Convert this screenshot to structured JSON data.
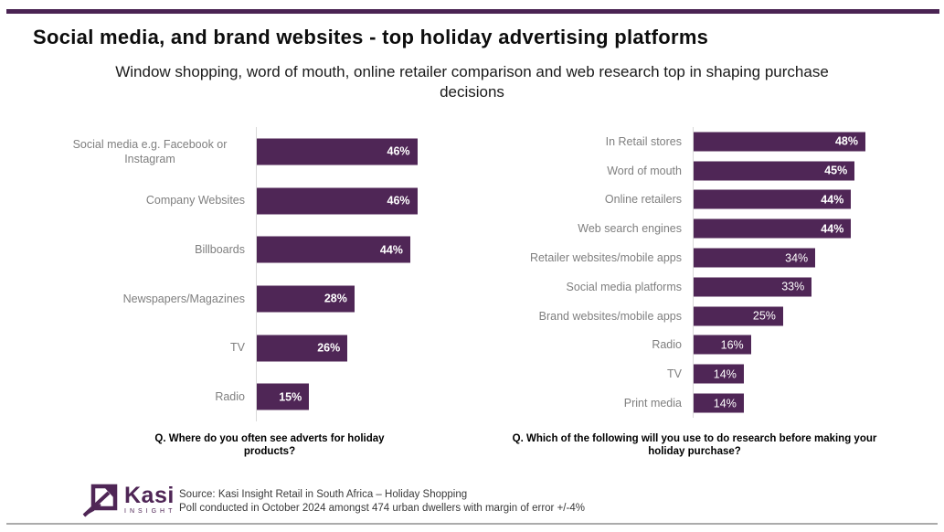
{
  "header": {
    "title": "Social media, and brand websites - top holiday advertising platforms",
    "subtitle": "Window shopping, word of mouth, online retailer comparison and web research top in shaping purchase decisions"
  },
  "chart_data": [
    {
      "type": "bar",
      "orientation": "horizontal",
      "question": "Q. Where do you often see adverts for holiday products?",
      "categories": [
        "Social media e.g. Facebook or Instagram",
        "Company Websites",
        "Billboards",
        "Newspapers/Magazines",
        "TV",
        "Radio"
      ],
      "values": [
        46,
        46,
        44,
        28,
        26,
        15
      ],
      "value_labels": [
        "46%",
        "46%",
        "44%",
        "28%",
        "26%",
        "15%"
      ],
      "bold_value_labels": [
        true,
        true,
        true,
        true,
        true,
        true
      ],
      "xlim": [
        0,
        60
      ],
      "unit": "%",
      "bar_color": "#4F2656",
      "grid": false,
      "legend": false
    },
    {
      "type": "bar",
      "orientation": "horizontal",
      "question": "Q. Which of the following will you use to do research before making your holiday purchase?",
      "categories": [
        "In Retail stores",
        "Word of mouth",
        "Online retailers",
        "Web search engines",
        "Retailer websites/mobile apps",
        "Social media platforms",
        "Brand websites/mobile apps",
        "Radio",
        "TV",
        "Print media"
      ],
      "values": [
        48,
        45,
        44,
        44,
        34,
        33,
        25,
        16,
        14,
        14
      ],
      "value_labels": [
        "48%",
        "45%",
        "44%",
        "44%",
        "34%",
        "33%",
        "25%",
        "16%",
        "14%",
        "14%"
      ],
      "bold_value_labels": [
        true,
        true,
        true,
        true,
        false,
        false,
        false,
        false,
        false,
        false
      ],
      "xlim": [
        0,
        60
      ],
      "unit": "%",
      "bar_color": "#4F2656",
      "grid": false,
      "legend": false
    }
  ],
  "footer": {
    "brand_name": "Kasi",
    "brand_subtitle": "INSIGHT",
    "source_line_1": "Source: Kasi Insight Retail in South Africa – Holiday Shopping",
    "source_line_2": "Poll conducted in October 2024 amongst 474 urban dwellers with margin of error +/-4%"
  },
  "colors": {
    "bar_purple": "#4F2656",
    "accent_line_purple": "#4A2453",
    "category_label_gray": "#7F7F7F",
    "axis_line_gray": "#D9D9D9",
    "bottom_rule_gray": "#ABABAB"
  }
}
